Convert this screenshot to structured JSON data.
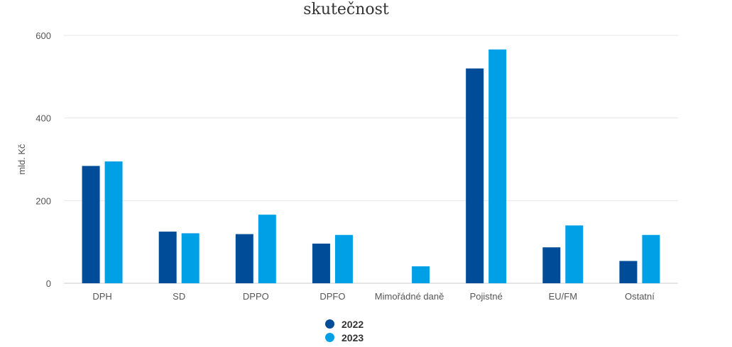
{
  "chart_data": {
    "type": "bar",
    "title": "skutečnost",
    "xlabel": "",
    "ylabel": "mld. Kč",
    "ylim": [
      0,
      600
    ],
    "yticks": [
      0,
      200,
      400,
      600
    ],
    "categories": [
      "DPH",
      "SD",
      "DPPO",
      "DPFO",
      "Mimořádné daně",
      "Pojistné",
      "EU/FM",
      "Ostatní"
    ],
    "series": [
      {
        "name": "2022",
        "color": "#004C99",
        "values": [
          284,
          125,
          119,
          96,
          0,
          520,
          87,
          54
        ]
      },
      {
        "name": "2023",
        "color": "#00A0E6",
        "values": [
          295,
          121,
          166,
          117,
          41,
          566,
          140,
          117
        ]
      }
    ],
    "grid": true,
    "legend_position": "bottom"
  }
}
